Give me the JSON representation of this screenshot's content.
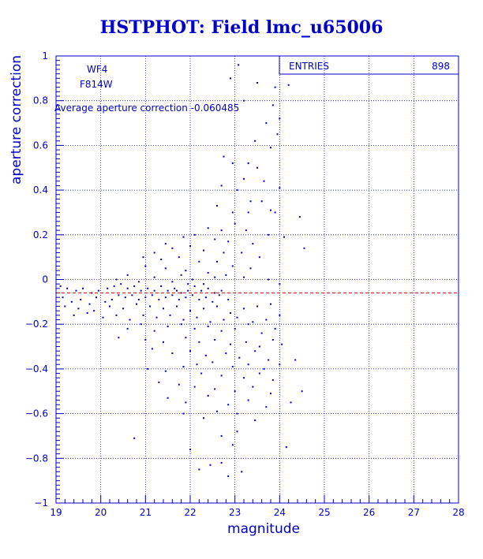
{
  "title": "HSTPHOT: Field lmc_u65006",
  "colors": {
    "axis": "#0000cc",
    "grid": "#0000cc",
    "points": "#0000cc",
    "mean_line": "#dd0000",
    "title": "#0000cc"
  },
  "stats_box": {
    "label": "ENTRIES",
    "value": "898"
  },
  "annotations": {
    "chip": "WF4",
    "filter": "F814W",
    "avg_text": "Average aperture correction -0.060485"
  },
  "chart_data": {
    "type": "scatter",
    "title": "HSTPHOT: Field lmc_u65006",
    "xlabel": "magnitude",
    "ylabel": "aperture correction",
    "xlim": [
      19,
      28
    ],
    "ylim": [
      -1,
      1
    ],
    "xticks": [
      19,
      20,
      21,
      22,
      23,
      24,
      25,
      26,
      27,
      28
    ],
    "yticks": [
      -1,
      -0.8,
      -0.6,
      -0.4,
      -0.2,
      0,
      0.2,
      0.4,
      0.6,
      0.8,
      1
    ],
    "xtick_labels": [
      "19",
      "20",
      "21",
      "22",
      "23",
      "24",
      "25",
      "26",
      "27",
      "28"
    ],
    "ytick_labels": [
      "−1",
      "−0.8",
      "−0.6",
      "−0.4",
      "−0.2",
      "0",
      "0.2",
      "0.4",
      "0.6",
      "0.8",
      "1"
    ],
    "grid": true,
    "mean_line_y": -0.060485,
    "entries": 898,
    "points": [
      [
        23.08,
        0.96
      ],
      [
        23.5,
        0.88
      ],
      [
        24.2,
        0.87
      ],
      [
        23.9,
        0.86
      ],
      [
        22.9,
        0.9
      ],
      [
        23.85,
        0.78
      ],
      [
        23.2,
        0.8
      ],
      [
        24.0,
        0.72
      ],
      [
        23.95,
        0.65
      ],
      [
        23.7,
        0.7
      ],
      [
        23.45,
        0.62
      ],
      [
        23.8,
        0.59
      ],
      [
        23.3,
        0.52
      ],
      [
        22.95,
        0.52
      ],
      [
        23.5,
        0.5
      ],
      [
        22.75,
        0.55
      ],
      [
        23.2,
        0.45
      ],
      [
        23.05,
        0.4
      ],
      [
        22.7,
        0.42
      ],
      [
        23.65,
        0.44
      ],
      [
        24.0,
        0.41
      ],
      [
        23.35,
        0.35
      ],
      [
        23.8,
        0.31
      ],
      [
        22.6,
        0.33
      ],
      [
        22.95,
        0.3
      ],
      [
        23.3,
        0.3
      ],
      [
        23.6,
        0.35
      ],
      [
        23.9,
        0.3
      ],
      [
        24.45,
        0.28
      ],
      [
        23.0,
        0.25
      ],
      [
        23.25,
        0.22
      ],
      [
        22.4,
        0.23
      ],
      [
        22.7,
        0.22
      ],
      [
        22.1,
        0.2
      ],
      [
        22.55,
        0.18
      ],
      [
        22.85,
        0.17
      ],
      [
        23.4,
        0.16
      ],
      [
        23.75,
        0.2
      ],
      [
        24.1,
        0.19
      ],
      [
        24.55,
        0.14
      ],
      [
        21.85,
        0.19
      ],
      [
        21.45,
        0.16
      ],
      [
        21.6,
        0.14
      ],
      [
        22.0,
        0.15
      ],
      [
        22.3,
        0.13
      ],
      [
        22.75,
        0.12
      ],
      [
        23.15,
        0.12
      ],
      [
        23.55,
        0.1
      ],
      [
        21.2,
        0.12
      ],
      [
        20.95,
        0.1
      ],
      [
        21.35,
        0.09
      ],
      [
        21.75,
        0.1
      ],
      [
        22.2,
        0.08
      ],
      [
        22.6,
        0.08
      ],
      [
        22.95,
        0.06
      ],
      [
        23.35,
        0.05
      ],
      [
        21.0,
        0.06
      ],
      [
        21.45,
        0.05
      ],
      [
        21.9,
        0.04
      ],
      [
        22.4,
        0.03
      ],
      [
        22.8,
        0.02
      ],
      [
        23.2,
        0.01
      ],
      [
        23.75,
        0.0
      ],
      [
        24.0,
        -0.02
      ],
      [
        19.1,
        -0.03
      ],
      [
        19.25,
        -0.04
      ],
      [
        19.45,
        -0.05
      ],
      [
        19.6,
        -0.04
      ],
      [
        19.8,
        -0.06
      ],
      [
        19.95,
        -0.05
      ],
      [
        20.15,
        -0.04
      ],
      [
        20.3,
        -0.03
      ],
      [
        20.45,
        -0.02
      ],
      [
        20.6,
        -0.04
      ],
      [
        20.75,
        -0.03
      ],
      [
        20.9,
        -0.05
      ],
      [
        21.05,
        -0.04
      ],
      [
        21.2,
        -0.05
      ],
      [
        21.35,
        -0.03
      ],
      [
        21.5,
        -0.05
      ],
      [
        21.65,
        -0.04
      ],
      [
        21.8,
        -0.06
      ],
      [
        21.95,
        -0.05
      ],
      [
        22.1,
        -0.03
      ],
      [
        22.25,
        -0.05
      ],
      [
        22.4,
        -0.04
      ],
      [
        22.55,
        -0.06
      ],
      [
        22.7,
        -0.05
      ],
      [
        19.15,
        -0.08
      ],
      [
        19.35,
        -0.1
      ],
      [
        19.55,
        -0.09
      ],
      [
        19.75,
        -0.11
      ],
      [
        19.9,
        -0.08
      ],
      [
        20.1,
        -0.1
      ],
      [
        20.25,
        -0.09
      ],
      [
        20.4,
        -0.07
      ],
      [
        20.55,
        -0.08
      ],
      [
        20.7,
        -0.07
      ],
      [
        20.85,
        -0.09
      ],
      [
        21.0,
        -0.08
      ],
      [
        21.15,
        -0.07
      ],
      [
        21.3,
        -0.09
      ],
      [
        21.45,
        -0.08
      ],
      [
        21.6,
        -0.07
      ],
      [
        21.75,
        -0.09
      ],
      [
        21.9,
        -0.08
      ],
      [
        22.05,
        -0.07
      ],
      [
        22.2,
        -0.09
      ],
      [
        22.35,
        -0.08
      ],
      [
        22.5,
        -0.1
      ],
      [
        22.65,
        -0.07
      ],
      [
        22.85,
        -0.09
      ],
      [
        19.2,
        -0.12
      ],
      [
        19.5,
        -0.13
      ],
      [
        19.85,
        -0.14
      ],
      [
        20.2,
        -0.12
      ],
      [
        20.5,
        -0.13
      ],
      [
        20.8,
        -0.11
      ],
      [
        21.1,
        -0.12
      ],
      [
        21.4,
        -0.13
      ],
      [
        21.7,
        -0.12
      ],
      [
        22.0,
        -0.14
      ],
      [
        22.3,
        -0.13
      ],
      [
        22.6,
        -0.12
      ],
      [
        22.9,
        -0.15
      ],
      [
        23.2,
        -0.13
      ],
      [
        23.5,
        -0.12
      ],
      [
        23.8,
        -0.11
      ],
      [
        19.4,
        -0.16
      ],
      [
        19.7,
        -0.15
      ],
      [
        20.05,
        -0.17
      ],
      [
        20.35,
        -0.16
      ],
      [
        20.65,
        -0.18
      ],
      [
        20.95,
        -0.16
      ],
      [
        21.25,
        -0.17
      ],
      [
        21.55,
        -0.16
      ],
      [
        21.85,
        -0.18
      ],
      [
        22.15,
        -0.17
      ],
      [
        22.45,
        -0.19
      ],
      [
        22.75,
        -0.18
      ],
      [
        23.05,
        -0.17
      ],
      [
        23.4,
        -0.19
      ],
      [
        23.7,
        -0.18
      ],
      [
        24.0,
        -0.16
      ],
      [
        20.6,
        -0.22
      ],
      [
        20.9,
        -0.2
      ],
      [
        21.2,
        -0.23
      ],
      [
        21.5,
        -0.21
      ],
      [
        21.8,
        -0.2
      ],
      [
        22.1,
        -0.22
      ],
      [
        22.4,
        -0.21
      ],
      [
        22.7,
        -0.23
      ],
      [
        23.0,
        -0.22
      ],
      [
        23.3,
        -0.2
      ],
      [
        23.6,
        -0.24
      ],
      [
        23.9,
        -0.22
      ],
      [
        20.4,
        -0.26
      ],
      [
        21.0,
        -0.27
      ],
      [
        21.4,
        -0.28
      ],
      [
        21.9,
        -0.26
      ],
      [
        22.2,
        -0.28
      ],
      [
        22.55,
        -0.27
      ],
      [
        22.9,
        -0.29
      ],
      [
        23.25,
        -0.28
      ],
      [
        23.55,
        -0.3
      ],
      [
        23.85,
        -0.27
      ],
      [
        24.05,
        -0.29
      ],
      [
        21.15,
        -0.31
      ],
      [
        21.6,
        -0.33
      ],
      [
        22.0,
        -0.32
      ],
      [
        22.35,
        -0.34
      ],
      [
        22.8,
        -0.33
      ],
      [
        23.1,
        -0.35
      ],
      [
        23.45,
        -0.32
      ],
      [
        23.75,
        -0.36
      ],
      [
        22.15,
        -0.38
      ],
      [
        22.5,
        -0.37
      ],
      [
        22.95,
        -0.39
      ],
      [
        23.3,
        -0.38
      ],
      [
        23.65,
        -0.4
      ],
      [
        24.0,
        -0.38
      ],
      [
        21.05,
        -0.4
      ],
      [
        21.45,
        -0.41
      ],
      [
        21.85,
        -0.39
      ],
      [
        22.25,
        -0.42
      ],
      [
        22.7,
        -0.43
      ],
      [
        23.2,
        -0.44
      ],
      [
        23.55,
        -0.42
      ],
      [
        23.85,
        -0.45
      ],
      [
        24.35,
        -0.36
      ],
      [
        21.3,
        -0.46
      ],
      [
        21.75,
        -0.47
      ],
      [
        22.1,
        -0.48
      ],
      [
        22.55,
        -0.49
      ],
      [
        23.0,
        -0.5
      ],
      [
        23.4,
        -0.48
      ],
      [
        23.8,
        -0.51
      ],
      [
        24.5,
        -0.5
      ],
      [
        21.5,
        -0.53
      ],
      [
        21.9,
        -0.55
      ],
      [
        22.4,
        -0.52
      ],
      [
        22.85,
        -0.56
      ],
      [
        23.3,
        -0.54
      ],
      [
        23.7,
        -0.57
      ],
      [
        24.25,
        -0.55
      ],
      [
        21.85,
        -0.6
      ],
      [
        22.3,
        -0.62
      ],
      [
        22.6,
        -0.59
      ],
      [
        23.05,
        -0.6
      ],
      [
        23.45,
        -0.63
      ],
      [
        22.7,
        -0.7
      ],
      [
        23.05,
        -0.68
      ],
      [
        20.75,
        -0.71
      ],
      [
        22.0,
        -0.76
      ],
      [
        22.95,
        -0.74
      ],
      [
        24.15,
        -0.75
      ],
      [
        22.45,
        -0.83
      ],
      [
        22.2,
        -0.85
      ],
      [
        22.7,
        -0.82
      ],
      [
        22.85,
        -0.88
      ],
      [
        23.15,
        -0.86
      ],
      [
        21.7,
        -0.05
      ],
      [
        21.95,
        -0.02
      ],
      [
        20.85,
        -0.01
      ],
      [
        20.35,
        0.0
      ],
      [
        20.6,
        0.02
      ],
      [
        21.2,
        0.01
      ],
      [
        21.6,
        -0.01
      ],
      [
        21.8,
        0.02
      ],
      [
        22.05,
        0.0
      ],
      [
        22.3,
        -0.02
      ],
      [
        22.55,
        0.01
      ]
    ]
  }
}
